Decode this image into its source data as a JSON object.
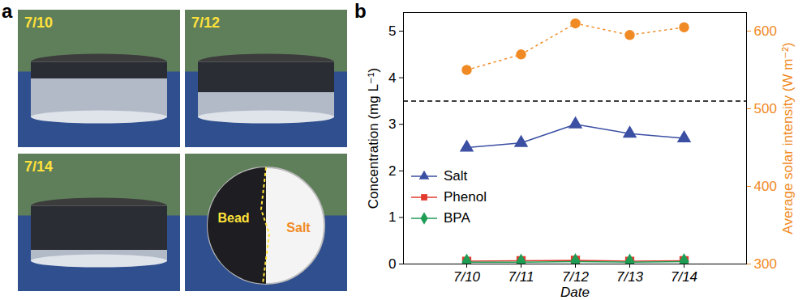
{
  "panel_labels": [
    "a",
    "b"
  ],
  "photos": [
    {
      "label": "7/10"
    },
    {
      "label": "7/12"
    },
    {
      "label": "7/14"
    },
    {
      "labels": [
        "Bead",
        "Salt"
      ]
    }
  ],
  "chart_data": {
    "type": "line",
    "x_label": "Date",
    "y_label": "Concentration (mg L⁻¹)",
    "y2_label": "Average solar intensity (W m⁻²)",
    "categories": [
      "7/10",
      "7/11",
      "7/12",
      "7/13",
      "7/14"
    ],
    "series": [
      {
        "name": "Salt",
        "color": "#3b4fa3",
        "marker": "triangle",
        "line_style": "solid",
        "values": [
          2.5,
          2.6,
          3.0,
          2.8,
          2.7
        ]
      },
      {
        "name": "Phenol",
        "color": "#e23a2e",
        "marker": "square",
        "line_style": "solid",
        "values": [
          0.06,
          0.07,
          0.08,
          0.06,
          0.07
        ]
      },
      {
        "name": "BPA",
        "color": "#1f9d55",
        "marker": "diamond",
        "line_style": "solid",
        "values": [
          0.04,
          0.04,
          0.05,
          0.04,
          0.05
        ]
      },
      {
        "axis": "y2",
        "color": "#f08a24",
        "marker": "circle",
        "line_style": "dotted",
        "values": [
          550,
          570,
          610,
          595,
          605
        ]
      }
    ],
    "ylim": [
      0,
      5.4
    ],
    "yticks": [
      0,
      1,
      2,
      3,
      4,
      5
    ],
    "y2lim": [
      300,
      624
    ],
    "y2ticks": [
      300,
      400,
      500,
      600
    ],
    "reference_line": 3.5,
    "grid": false
  }
}
